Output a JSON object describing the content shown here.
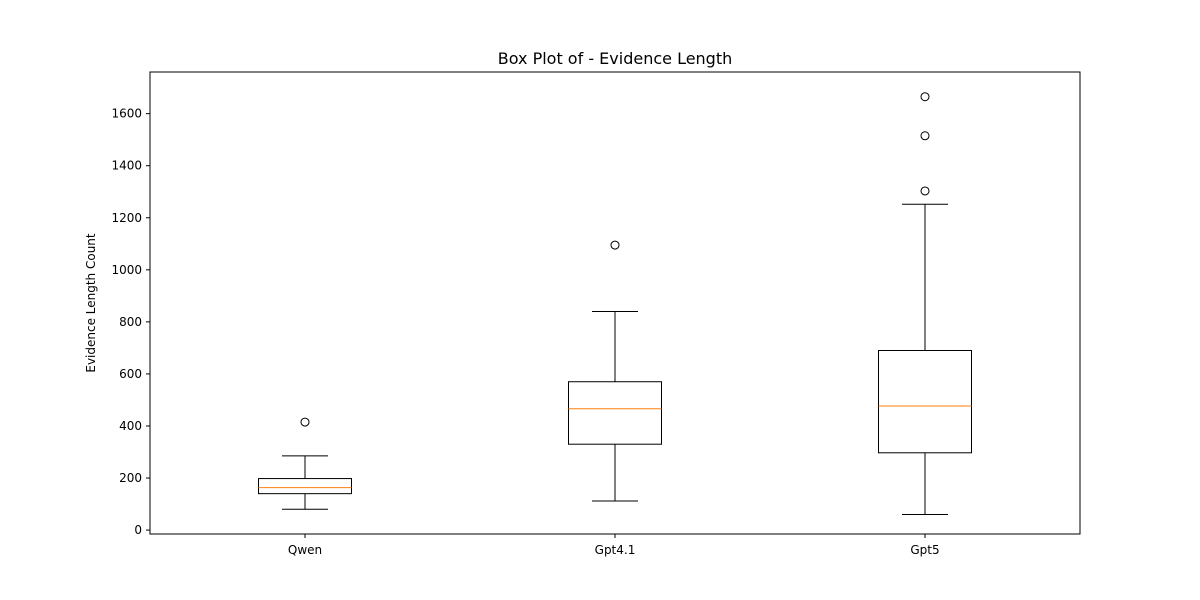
{
  "chart_data": {
    "type": "box",
    "title": "Box Plot of - Evidence Length",
    "xlabel": "",
    "ylabel": "Evidence Length Count",
    "ylim": [
      -15,
      1760
    ],
    "yticks": [
      0,
      200,
      400,
      600,
      800,
      1000,
      1200,
      1400,
      1600
    ],
    "categories": [
      "Qwen",
      "Gpt4.1",
      "Gpt5"
    ],
    "boxes": [
      {
        "label": "Qwen",
        "whisker_low": 80,
        "q1": 140,
        "median": 163,
        "q3": 198,
        "whisker_high": 285,
        "outliers": [
          415
        ]
      },
      {
        "label": "Gpt4.1",
        "whisker_low": 112,
        "q1": 330,
        "median": 466,
        "q3": 570,
        "whisker_high": 840,
        "outliers": [
          1095
        ]
      },
      {
        "label": "Gpt5",
        "whisker_low": 60,
        "q1": 297,
        "median": 477,
        "q3": 690,
        "whisker_high": 1252,
        "outliers": [
          1303,
          1515,
          1665
        ]
      }
    ],
    "colors": {
      "box": "#000000",
      "median": "#ff7f0e",
      "outlier": "#000000"
    },
    "grid": false,
    "legend": "none"
  }
}
